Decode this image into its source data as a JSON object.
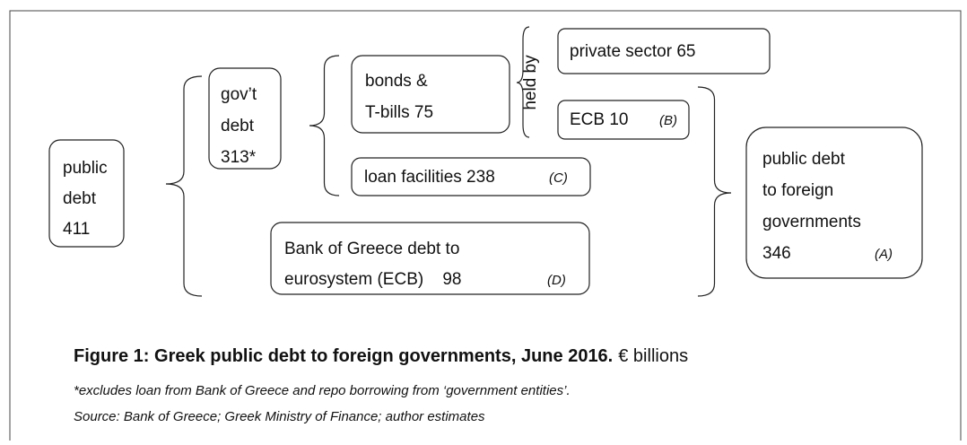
{
  "nodes": [
    {
      "lines": [
        "public",
        "debt",
        "411"
      ]
    },
    {
      "lines": [
        "gov’t",
        "debt",
        "313*"
      ]
    },
    {
      "lines": [
        "bonds &",
        "T-bills 75"
      ]
    },
    {
      "lines": [
        "private sector 65"
      ]
    },
    {
      "lines": [
        "ECB 10"
      ],
      "note": "(B)"
    },
    {
      "lines": [
        "loan facilities 238"
      ],
      "note": "(C)"
    },
    {
      "lines": [
        "Bank of Greece debt to",
        "eurosystem (ECB)    98"
      ],
      "note": "(D)"
    },
    {
      "lines": [
        "public debt",
        "to foreign",
        "governments",
        "346"
      ],
      "note": "(A)"
    }
  ],
  "held_by": "held by",
  "caption": {
    "title": "Figure 1: Greek public debt to foreign governments, June 2016.",
    "units": "€ billions"
  },
  "footnote": "*excludes loan from Bank of Greece and repo borrowing from ‘government entities’.",
  "source": "Source: Bank of Greece; Greek Ministry of Finance; author estimates"
}
